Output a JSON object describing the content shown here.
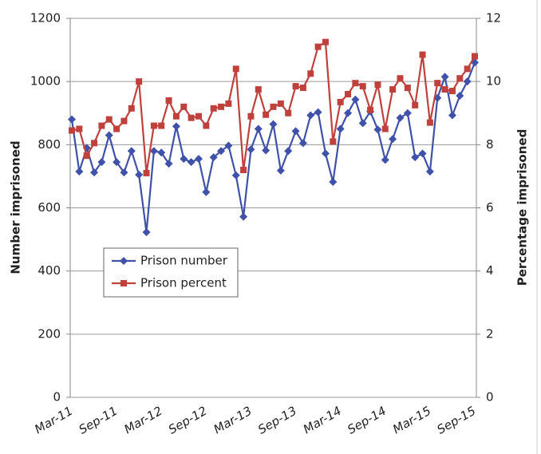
{
  "chart_data": {
    "type": "line",
    "categories": [
      "Mar-11",
      null,
      null,
      null,
      null,
      null,
      "Sep-11",
      null,
      null,
      null,
      null,
      null,
      "Mar-12",
      null,
      null,
      null,
      null,
      null,
      "Sep-12",
      null,
      null,
      null,
      null,
      null,
      "Mar-13",
      null,
      null,
      null,
      null,
      null,
      "Sep-13",
      null,
      null,
      null,
      null,
      null,
      "Mar-14",
      null,
      null,
      null,
      null,
      null,
      "Sep-14",
      null,
      null,
      null,
      null,
      null,
      "Mar-15",
      null,
      null,
      null,
      null,
      null,
      "Sep-15"
    ],
    "series": [
      {
        "name": "Prison number",
        "color": "#3f51a9",
        "marker": "diamond",
        "values": [
          880,
          715,
          790,
          712,
          745,
          830,
          745,
          712,
          780,
          705,
          523,
          780,
          775,
          740,
          858,
          755,
          745,
          755,
          650,
          760,
          780,
          797,
          703,
          572,
          785,
          850,
          782,
          865,
          718,
          780,
          843,
          805,
          893,
          903,
          772,
          682,
          850,
          900,
          943,
          868,
          905,
          848,
          752,
          818,
          885,
          900,
          760,
          772,
          715,
          948,
          1015,
          893,
          955,
          1000,
          1060
        ]
      },
      {
        "name": "Prison percent",
        "color": "#c0403c",
        "marker": "square",
        "axis": "y2",
        "values": [
          8.45,
          8.5,
          7.65,
          8.05,
          8.6,
          8.8,
          8.5,
          8.75,
          9.15,
          10.0,
          7.1,
          8.6,
          8.6,
          9.4,
          8.9,
          9.2,
          8.85,
          8.9,
          8.6,
          9.15,
          9.2,
          9.3,
          10.4,
          7.2,
          8.9,
          9.75,
          8.95,
          9.2,
          9.3,
          9.0,
          9.85,
          9.8,
          10.25,
          11.1,
          11.25,
          8.1,
          9.35,
          9.6,
          9.95,
          9.85,
          9.1,
          9.9,
          8.5,
          9.75,
          10.1,
          9.8,
          9.25,
          10.85,
          8.7,
          9.95,
          9.75,
          9.7,
          10.1,
          10.4,
          10.8
        ]
      }
    ],
    "y_label": "Number imprisoned",
    "y2_label": "Percentage imprisoned",
    "ylim": [
      0,
      1200
    ],
    "yticks": [
      0,
      200,
      400,
      600,
      800,
      1000,
      1200
    ],
    "y2lim": [
      0,
      12
    ],
    "y2ticks": [
      0,
      2,
      4,
      6,
      8,
      10,
      12
    ],
    "grid": true,
    "legend": "left"
  }
}
